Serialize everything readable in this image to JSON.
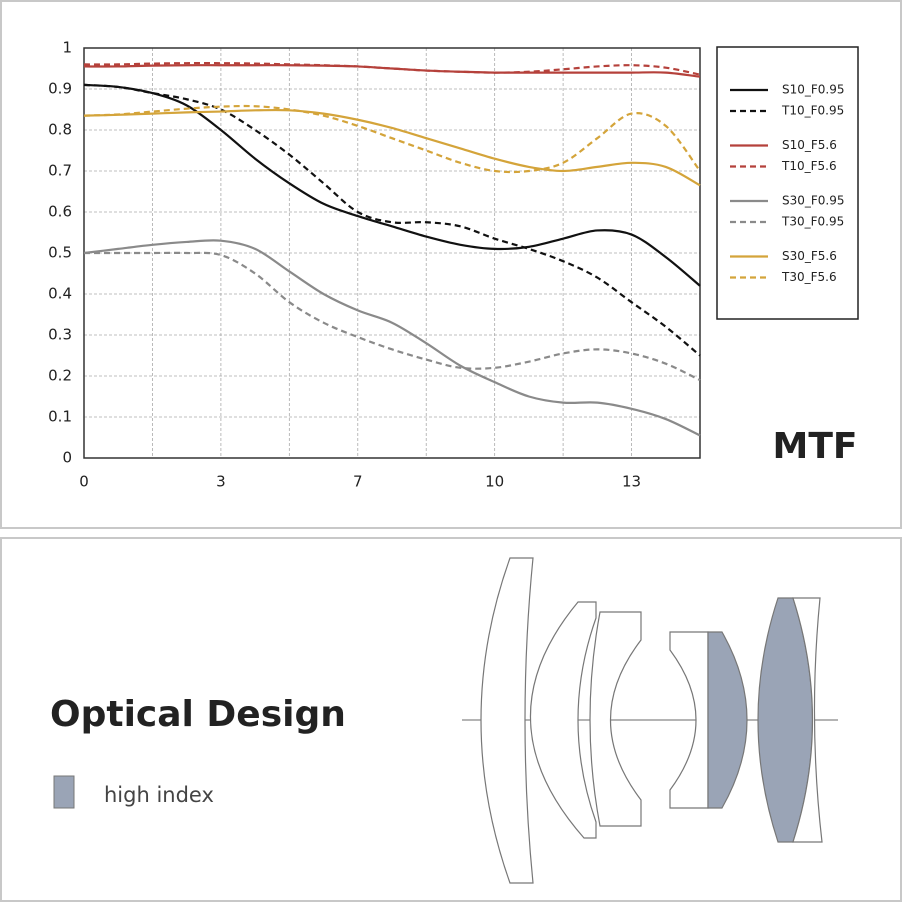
{
  "chart_data": {
    "type": "line",
    "title": "MTF",
    "x": [
      0,
      0.75,
      1.5,
      2.25,
      3,
      4,
      5,
      6,
      7,
      7.75,
      8.5,
      9.25,
      10,
      10.75,
      11.5,
      12.25,
      13,
      13.75,
      14.5
    ],
    "xlim": [
      0,
      14.5
    ],
    "xticks": [
      0,
      3,
      7,
      10,
      13
    ],
    "ylim": [
      0,
      1
    ],
    "yticks": [
      0,
      0.1,
      0.2,
      0.3,
      0.4,
      0.5,
      0.6,
      0.7,
      0.8,
      0.9,
      1
    ],
    "grid": true,
    "legend": "right",
    "series": [
      {
        "name": "S10_F0.95",
        "color": "#111111",
        "style": "solid",
        "values": [
          0.91,
          0.905,
          0.89,
          0.86,
          0.8,
          0.73,
          0.67,
          0.62,
          0.59,
          0.565,
          0.54,
          0.52,
          0.51,
          0.515,
          0.535,
          0.555,
          0.545,
          0.49,
          0.42
        ]
      },
      {
        "name": "T10_F0.95",
        "color": "#111111",
        "style": "dashed",
        "values": [
          0.91,
          0.905,
          0.89,
          0.875,
          0.85,
          0.8,
          0.74,
          0.67,
          0.6,
          0.575,
          0.575,
          0.565,
          0.535,
          0.51,
          0.48,
          0.44,
          0.38,
          0.32,
          0.25
        ]
      },
      {
        "name": "S10_F5.6",
        "color": "#b5413b",
        "style": "solid",
        "values": [
          0.955,
          0.955,
          0.957,
          0.958,
          0.958,
          0.958,
          0.958,
          0.957,
          0.955,
          0.95,
          0.945,
          0.942,
          0.94,
          0.94,
          0.94,
          0.94,
          0.94,
          0.94,
          0.93
        ]
      },
      {
        "name": "T10_F5.6",
        "color": "#b5413b",
        "style": "dashed",
        "values": [
          0.96,
          0.96,
          0.962,
          0.963,
          0.963,
          0.962,
          0.96,
          0.958,
          0.955,
          0.95,
          0.945,
          0.942,
          0.94,
          0.942,
          0.948,
          0.955,
          0.958,
          0.952,
          0.935
        ]
      },
      {
        "name": "S30_F0.95",
        "color": "#8a8a8a",
        "style": "solid",
        "values": [
          0.5,
          0.51,
          0.52,
          0.527,
          0.53,
          0.51,
          0.455,
          0.4,
          0.36,
          0.33,
          0.28,
          0.225,
          0.185,
          0.15,
          0.135,
          0.135,
          0.12,
          0.095,
          0.055
        ]
      },
      {
        "name": "T30_F0.95",
        "color": "#8a8a8a",
        "style": "dashed",
        "values": [
          0.5,
          0.5,
          0.5,
          0.5,
          0.495,
          0.45,
          0.38,
          0.33,
          0.295,
          0.265,
          0.24,
          0.22,
          0.22,
          0.235,
          0.255,
          0.265,
          0.255,
          0.23,
          0.19
        ]
      },
      {
        "name": "S30_F5.6",
        "color": "#d4a43a",
        "style": "solid",
        "values": [
          0.835,
          0.837,
          0.84,
          0.843,
          0.845,
          0.848,
          0.848,
          0.84,
          0.825,
          0.805,
          0.78,
          0.755,
          0.73,
          0.71,
          0.7,
          0.71,
          0.72,
          0.71,
          0.665
        ]
      },
      {
        "name": "T30_F5.6",
        "color": "#d4a43a",
        "style": "dashed",
        "values": [
          0.835,
          0.838,
          0.845,
          0.852,
          0.857,
          0.858,
          0.85,
          0.835,
          0.81,
          0.78,
          0.75,
          0.72,
          0.7,
          0.7,
          0.72,
          0.78,
          0.84,
          0.81,
          0.7
        ]
      }
    ]
  },
  "optical_design": {
    "title": "Optical Design",
    "legend": "high index"
  }
}
